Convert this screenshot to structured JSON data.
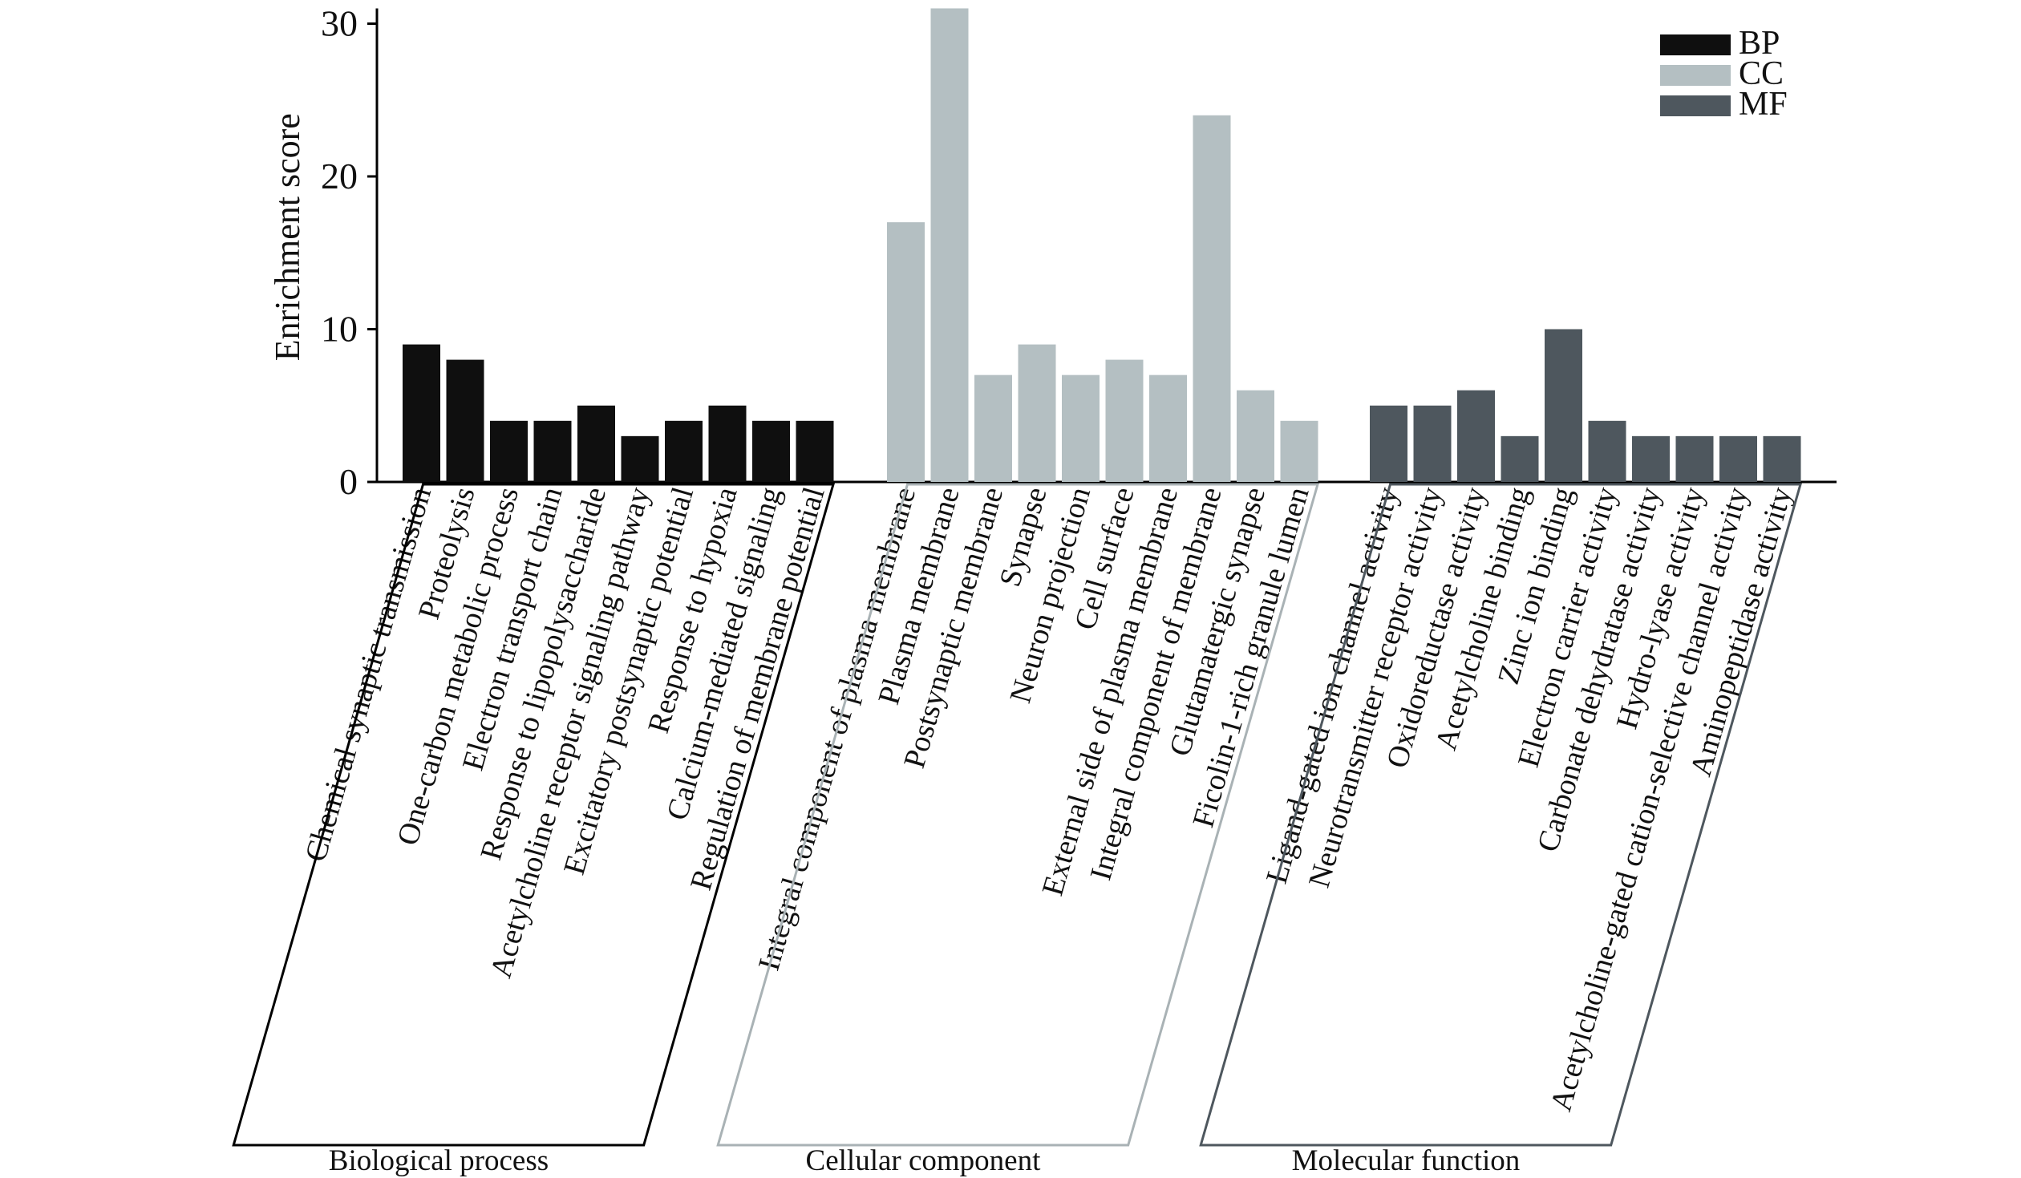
{
  "chart_data": {
    "type": "bar",
    "ylabel": "Enrichment score",
    "ylim": [
      0,
      31
    ],
    "yticks": [
      0,
      10,
      20,
      30
    ],
    "grid": false,
    "legend_position": "top-right",
    "legend": [
      {
        "name": "BP",
        "color": "#0f0f0f"
      },
      {
        "name": "CC",
        "color": "#b4bfc2"
      },
      {
        "name": "MF",
        "color": "#4e575e"
      }
    ],
    "groups": [
      {
        "key": "BP",
        "label": "Biological process",
        "color": "#0f0f0f",
        "frame_color": "#000000",
        "categories": [
          "Chemical synaptic transmission",
          "Proteolysis",
          "One-carbon metabolic process",
          "Electron transport chain",
          "Response to lipopolysaccharide",
          "Acetylcholine receptor signaling pathway",
          "Excitatory postsynaptic potential",
          "Response to hypoxia",
          "Calcium-mediated signaling",
          "Regulation of membrane potential"
        ],
        "values": [
          9,
          8,
          4,
          4,
          5,
          3,
          4,
          5,
          4,
          4
        ]
      },
      {
        "key": "CC",
        "label": "Cellular component",
        "color": "#b4bfc2",
        "frame_color": "#a9b2b5",
        "categories": [
          "Integral component of plasma membrane",
          "Plasma membrane",
          "Postsynaptic membrane",
          "Synapse",
          "Neuron projection",
          "Cell surface",
          "External side of plasma membrane",
          "Integral component of membrane",
          "Glutamatergic synapse",
          "Ficolin-1-rich granule lumen"
        ],
        "values": [
          17,
          31,
          7,
          9,
          7,
          8,
          7,
          24,
          6,
          4
        ]
      },
      {
        "key": "MF",
        "label": "Molecular function",
        "color": "#4e575e",
        "frame_color": "#4e575e",
        "categories": [
          "Ligand-gated ion channel activity",
          "Neurotransmitter receptor activity",
          "Oxidoreductase activity",
          "Acetylcholine binding",
          "Zinc ion binding",
          "Electron carrier activity",
          "Carbonate dehydratase activity",
          "Hydro-lyase activity",
          "Acetylcholine-gated cation-selective channel activity",
          "Aminopeptidase activity"
        ],
        "values": [
          5,
          5,
          6,
          3,
          10,
          4,
          3,
          3,
          3,
          3
        ]
      }
    ]
  }
}
